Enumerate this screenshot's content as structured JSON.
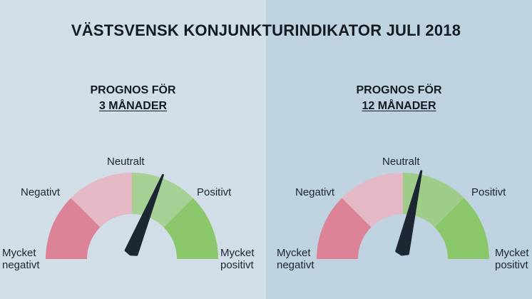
{
  "title": "VÄSTSVENSK KONJUNKTURINDIKATOR JULI 2018",
  "colors": {
    "background_left": "#d1dee7",
    "background_right": "#bfd2e0",
    "very_negative": "#dc8296",
    "negative": "#e4b8c4",
    "neutral_left": "#a6d094",
    "neutral_right": "#9fcc88",
    "positive": "#8ac66a",
    "very_positive": "#8ac66a",
    "needle": "#1c2733"
  },
  "labels": {
    "very_negative": [
      "Mycket",
      "negativt"
    ],
    "negative": "Negativt",
    "neutral": "Neutralt",
    "positive": "Positivt",
    "very_positive": [
      "Mycket",
      "positivt"
    ]
  },
  "gauges": [
    {
      "heading_line1": "PROGNOS FÖR",
      "heading_line2": "3 MÅNADER",
      "needle_position": 0.62
    },
    {
      "heading_line1": "PROGNOS FÖR",
      "heading_line2": "12 MÅNADER",
      "needle_position": 0.57
    }
  ]
}
